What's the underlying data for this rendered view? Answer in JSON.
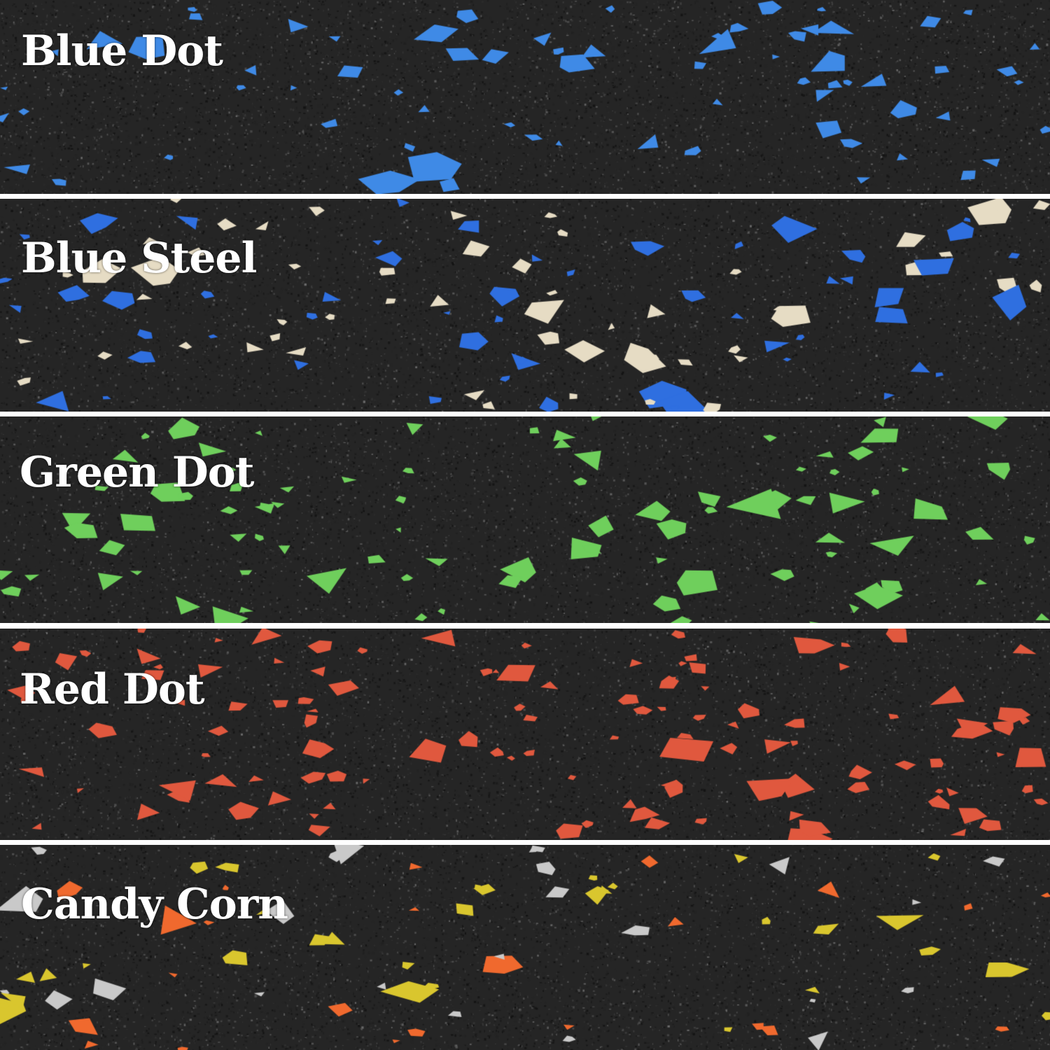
{
  "swatches": [
    {
      "label": "Blue Dot",
      "colors": [
        "#3f8ae6"
      ]
    },
    {
      "label": "Blue Steel",
      "colors": [
        "#2f6fe0",
        "#e6dcc4"
      ]
    },
    {
      "label": "Green Dot",
      "colors": [
        "#6fcf5c"
      ]
    },
    {
      "label": "Red Dot",
      "colors": [
        "#e0583e"
      ]
    },
    {
      "label": "Candy Corn",
      "colors": [
        "#d9c62e",
        "#f0692e",
        "#c9c9c9"
      ]
    }
  ],
  "background_color": "#252525",
  "divider_color": "#ffffff"
}
